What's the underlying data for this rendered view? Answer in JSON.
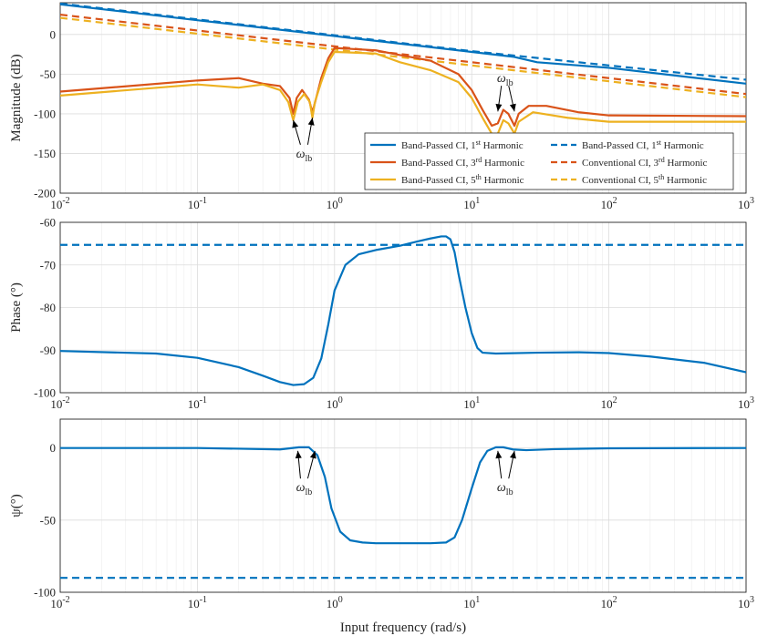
{
  "chart_data": [
    {
      "type": "line",
      "xscale": "log",
      "xlim": [
        0.01,
        1000
      ],
      "ylim": [
        -200,
        40
      ],
      "ylabel": "Magnitude (dB)",
      "x_ticks": [
        "10",
        "10",
        "10",
        "10",
        "10",
        "10"
      ],
      "x_tick_exp": [
        "-2",
        "-1",
        "0",
        "1",
        "2",
        "3"
      ],
      "y_ticks": [
        "0",
        "-50",
        "-100",
        "-150",
        "-200"
      ],
      "grid": true,
      "legend_position": "lower-right",
      "legend": [
        {
          "text": "Band-Passed CI, 1",
          "sup": "st",
          "tail": " Harmonic",
          "color": "#0072BD",
          "dash": false
        },
        {
          "text": "Band-Passed CI, 3",
          "sup": "rd",
          "tail": " Harmonic",
          "color": "#D95319",
          "dash": false
        },
        {
          "text": "Band-Passed CI, 5",
          "sup": "th",
          "tail": " Harmonic",
          "color": "#EDB120",
          "dash": false
        },
        {
          "text": "Band-Passed CI, 1",
          "sup": "st",
          "tail": " Harmonic",
          "color": "#0072BD",
          "dash": true
        },
        {
          "text": "Conventional CI, 3",
          "sup": "rd",
          "tail": " Harmonic",
          "color": "#D95319",
          "dash": true
        },
        {
          "text": "Conventional CI, 5",
          "sup": "th",
          "tail": " Harmonic",
          "color": "#EDB120",
          "dash": true
        }
      ],
      "annotations": [
        {
          "symbol": "ω",
          "sub": "lb",
          "x": 0.6,
          "y": -155,
          "arrows": [
            [
              0.5,
              -108
            ],
            [
              0.69,
              -105
            ]
          ]
        },
        {
          "symbol": "ω",
          "sub": "lb",
          "x": 17.5,
          "y": -60,
          "arrows": [
            [
              15.5,
              -97
            ],
            [
              20.5,
              -97
            ]
          ]
        }
      ],
      "series": [
        {
          "color": "#0072BD",
          "dash": false,
          "points": [
            [
              0.01,
              38
            ],
            [
              0.1,
              18
            ],
            [
              1,
              -2
            ],
            [
              10,
              -22
            ],
            [
              20,
              -28
            ],
            [
              30,
              -35
            ],
            [
              100,
              -42
            ],
            [
              1000,
              -62
            ]
          ]
        },
        {
          "color": "#0072BD",
          "dash": true,
          "points": [
            [
              0.01,
              39
            ],
            [
              0.1,
              19
            ],
            [
              1,
              -1
            ],
            [
              10,
              -21
            ],
            [
              100,
              -39
            ],
            [
              1000,
              -57
            ]
          ]
        },
        {
          "color": "#D95319",
          "dash": true,
          "points": [
            [
              0.01,
              25
            ],
            [
              0.1,
              5
            ],
            [
              1,
              -15
            ],
            [
              10,
              -35
            ],
            [
              100,
              -55
            ],
            [
              1000,
              -75
            ]
          ]
        },
        {
          "color": "#EDB120",
          "dash": true,
          "points": [
            [
              0.01,
              21
            ],
            [
              0.1,
              1
            ],
            [
              1,
              -19
            ],
            [
              10,
              -39
            ],
            [
              100,
              -59
            ],
            [
              1000,
              -79
            ]
          ]
        },
        {
          "color": "#D95319",
          "dash": false,
          "points": [
            [
              0.01,
              -72
            ],
            [
              0.1,
              -58
            ],
            [
              0.2,
              -55
            ],
            [
              0.3,
              -62
            ],
            [
              0.4,
              -65
            ],
            [
              0.47,
              -80
            ],
            [
              0.5,
              -100
            ],
            [
              0.53,
              -80
            ],
            [
              0.58,
              -70
            ],
            [
              0.65,
              -82
            ],
            [
              0.69,
              -98
            ],
            [
              0.73,
              -82
            ],
            [
              0.8,
              -55
            ],
            [
              0.9,
              -30
            ],
            [
              1,
              -17
            ],
            [
              2,
              -20
            ],
            [
              3,
              -26
            ],
            [
              5,
              -33
            ],
            [
              8,
              -50
            ],
            [
              10,
              -70
            ],
            [
              12,
              -95
            ],
            [
              14,
              -115
            ],
            [
              15.5,
              -112
            ],
            [
              17,
              -95
            ],
            [
              18.5,
              -100
            ],
            [
              20.5,
              -115
            ],
            [
              22,
              -100
            ],
            [
              26,
              -90
            ],
            [
              35,
              -90
            ],
            [
              60,
              -98
            ],
            [
              100,
              -102
            ],
            [
              1000,
              -103
            ]
          ]
        },
        {
          "color": "#EDB120",
          "dash": false,
          "points": [
            [
              0.01,
              -77
            ],
            [
              0.1,
              -63
            ],
            [
              0.2,
              -67
            ],
            [
              0.3,
              -63
            ],
            [
              0.4,
              -70
            ],
            [
              0.46,
              -85
            ],
            [
              0.5,
              -108
            ],
            [
              0.54,
              -85
            ],
            [
              0.6,
              -75
            ],
            [
              0.66,
              -85
            ],
            [
              0.69,
              -105
            ],
            [
              0.72,
              -85
            ],
            [
              0.8,
              -60
            ],
            [
              0.9,
              -35
            ],
            [
              1,
              -22
            ],
            [
              2,
              -24
            ],
            [
              3,
              -35
            ],
            [
              5,
              -45
            ],
            [
              8,
              -60
            ],
            [
              10,
              -80
            ],
            [
              12,
              -105
            ],
            [
              14,
              -125
            ],
            [
              15.5,
              -125
            ],
            [
              17,
              -108
            ],
            [
              18.5,
              -112
            ],
            [
              20.5,
              -125
            ],
            [
              22,
              -110
            ],
            [
              28,
              -98
            ],
            [
              50,
              -105
            ],
            [
              100,
              -110
            ],
            [
              1000,
              -110
            ]
          ]
        }
      ]
    },
    {
      "type": "line",
      "xscale": "log",
      "xlim": [
        0.01,
        1000
      ],
      "ylim": [
        -100,
        -60
      ],
      "ylabel": "Phase (°)",
      "x_ticks": [
        "10",
        "10",
        "10",
        "10",
        "10",
        "10"
      ],
      "x_tick_exp": [
        "-2",
        "-1",
        "0",
        "1",
        "2",
        "3"
      ],
      "y_ticks": [
        "-60",
        "-70",
        "-80",
        "-90",
        "-100"
      ],
      "grid": true,
      "series": [
        {
          "color": "#0072BD",
          "dash": true,
          "points": [
            [
              0.01,
              -65.3
            ],
            [
              1000,
              -65.3
            ]
          ]
        },
        {
          "color": "#0072BD",
          "dash": false,
          "points": [
            [
              0.01,
              -90.2
            ],
            [
              0.05,
              -90.8
            ],
            [
              0.1,
              -91.8
            ],
            [
              0.2,
              -94
            ],
            [
              0.3,
              -96
            ],
            [
              0.4,
              -97.5
            ],
            [
              0.5,
              -98.2
            ],
            [
              0.6,
              -98
            ],
            [
              0.7,
              -96.5
            ],
            [
              0.8,
              -92
            ],
            [
              0.9,
              -84
            ],
            [
              1,
              -76
            ],
            [
              1.2,
              -70
            ],
            [
              1.5,
              -67.5
            ],
            [
              2,
              -66.5
            ],
            [
              3,
              -65.5
            ],
            [
              4,
              -64.5
            ],
            [
              5,
              -63.8
            ],
            [
              6,
              -63.3
            ],
            [
              6.5,
              -63.3
            ],
            [
              7,
              -64
            ],
            [
              7.5,
              -67
            ],
            [
              8,
              -72
            ],
            [
              9,
              -80
            ],
            [
              10,
              -86
            ],
            [
              11,
              -89.5
            ],
            [
              12,
              -90.6
            ],
            [
              15,
              -90.8
            ],
            [
              30,
              -90.6
            ],
            [
              60,
              -90.5
            ],
            [
              100,
              -90.7
            ],
            [
              200,
              -91.5
            ],
            [
              500,
              -93
            ],
            [
              1000,
              -95.2
            ]
          ]
        }
      ]
    },
    {
      "type": "line",
      "xscale": "log",
      "xlim": [
        0.01,
        1000
      ],
      "ylim": [
        -100,
        20
      ],
      "ylabel": "ψ(°)",
      "xlabel": "Input frequency (rad/s)",
      "x_ticks": [
        "10",
        "10",
        "10",
        "10",
        "10",
        "10"
      ],
      "x_tick_exp": [
        "-2",
        "-1",
        "0",
        "1",
        "2",
        "3"
      ],
      "y_ticks": [
        "0",
        "-50",
        "-100"
      ],
      "grid": true,
      "annotations": [
        {
          "symbol": "ω",
          "sub": "lb",
          "x": 0.6,
          "y": -30,
          "arrows": [
            [
              0.54,
              -2
            ],
            [
              0.72,
              -2
            ]
          ]
        },
        {
          "symbol": "ω",
          "sub": "lb",
          "x": 17.5,
          "y": -30,
          "arrows": [
            [
              15.5,
              -2
            ],
            [
              20.5,
              -2
            ]
          ]
        }
      ],
      "series": [
        {
          "color": "#0072BD",
          "dash": true,
          "points": [
            [
              0.01,
              -90
            ],
            [
              1000,
              -90
            ]
          ]
        },
        {
          "color": "#0072BD",
          "dash": false,
          "points": [
            [
              0.01,
              0
            ],
            [
              0.1,
              0
            ],
            [
              0.2,
              -0.5
            ],
            [
              0.4,
              -1
            ],
            [
              0.55,
              0.5
            ],
            [
              0.65,
              0.5
            ],
            [
              0.75,
              -5
            ],
            [
              0.85,
              -20
            ],
            [
              0.95,
              -42
            ],
            [
              1.1,
              -58
            ],
            [
              1.3,
              -64
            ],
            [
              1.6,
              -65.5
            ],
            [
              2,
              -66
            ],
            [
              5,
              -66
            ],
            [
              6.5,
              -65.5
            ],
            [
              7.5,
              -62
            ],
            [
              8.5,
              -50
            ],
            [
              10,
              -28
            ],
            [
              11.5,
              -10
            ],
            [
              13,
              -2
            ],
            [
              15,
              0.5
            ],
            [
              17,
              0.5
            ],
            [
              20,
              -1
            ],
            [
              25,
              -1.5
            ],
            [
              40,
              -0.8
            ],
            [
              100,
              -0.2
            ],
            [
              1000,
              0
            ]
          ]
        }
      ]
    }
  ]
}
